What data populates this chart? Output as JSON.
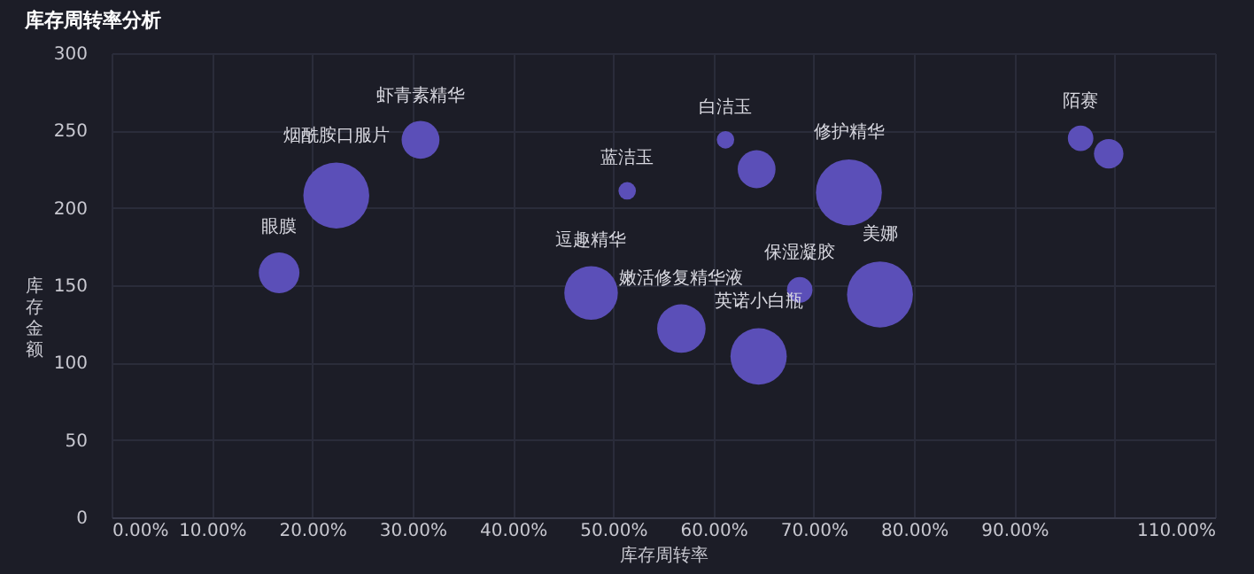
{
  "chart_data": {
    "type": "bubble",
    "title": "库存周转率分析",
    "xlabel": "库存周转率",
    "ylabel": "库存金额",
    "x": [
      0.167,
      0.224,
      0.308,
      0.514,
      0.478,
      0.568,
      0.645,
      0.686,
      0.766,
      0.735,
      0.612,
      0.643,
      0.966,
      0.994
    ],
    "series": [
      {
        "color": "#5b4fb8",
        "values": [
          158,
          208,
          244,
          211,
          145,
          122,
          104,
          147,
          144,
          210,
          244,
          225,
          245,
          235
        ],
        "sizes": [
          0.38,
          1,
          0.33,
          0.07,
          0.66,
          0.54,
          0.73,
          0.15,
          1,
          1,
          0.07,
          0.33,
          0.15,
          0.2
        ]
      }
    ],
    "annotations": [
      {
        "text": "眼膜",
        "x": 0.167,
        "y": 158
      },
      {
        "text": "烟酰胺口服片",
        "x": 0.224,
        "y": 208
      },
      {
        "text": "虾青素精华",
        "x": 0.308,
        "y": 244
      },
      {
        "text": "蓝洁玉",
        "x": 0.514,
        "y": 211
      },
      {
        "text": "逗趣精华",
        "x": 0.478,
        "y": 145
      },
      {
        "text": "嫩活修复精华液",
        "x": 0.568,
        "y": 122
      },
      {
        "text": "英诺小白瓶",
        "x": 0.645,
        "y": 104
      },
      {
        "text": "保湿凝胶",
        "x": 0.686,
        "y": 147
      },
      {
        "text": "美娜",
        "x": 0.766,
        "y": 144
      },
      {
        "text": "修护精华",
        "x": 0.735,
        "y": 210
      },
      {
        "text": "白洁玉",
        "x": 0.612,
        "y": 244
      },
      {
        "text": "陌赛",
        "x": 0.966,
        "y": 245
      }
    ],
    "xlim": [
      0,
      1.1
    ],
    "xticks": [
      {
        "value": 0,
        "label": "0.00%"
      },
      {
        "value": 0.1,
        "label": "10.00%"
      },
      {
        "value": 0.2,
        "label": "20.00%"
      },
      {
        "value": 0.3,
        "label": "30.00%"
      },
      {
        "value": 0.4,
        "label": "40.00%"
      },
      {
        "value": 0.5,
        "label": "50.00%"
      },
      {
        "value": 0.6,
        "label": "60.00%"
      },
      {
        "value": 0.7,
        "label": "70.00%"
      },
      {
        "value": 0.8,
        "label": "80.00%"
      },
      {
        "value": 0.9,
        "label": "90.00%"
      },
      {
        "value": 1.0,
        "label": null
      },
      {
        "value": 1.1,
        "label": "110.00%"
      }
    ],
    "ylim": [
      0,
      300
    ],
    "yticks": [
      0,
      50,
      100,
      150,
      200,
      250,
      300
    ],
    "grid": true
  }
}
